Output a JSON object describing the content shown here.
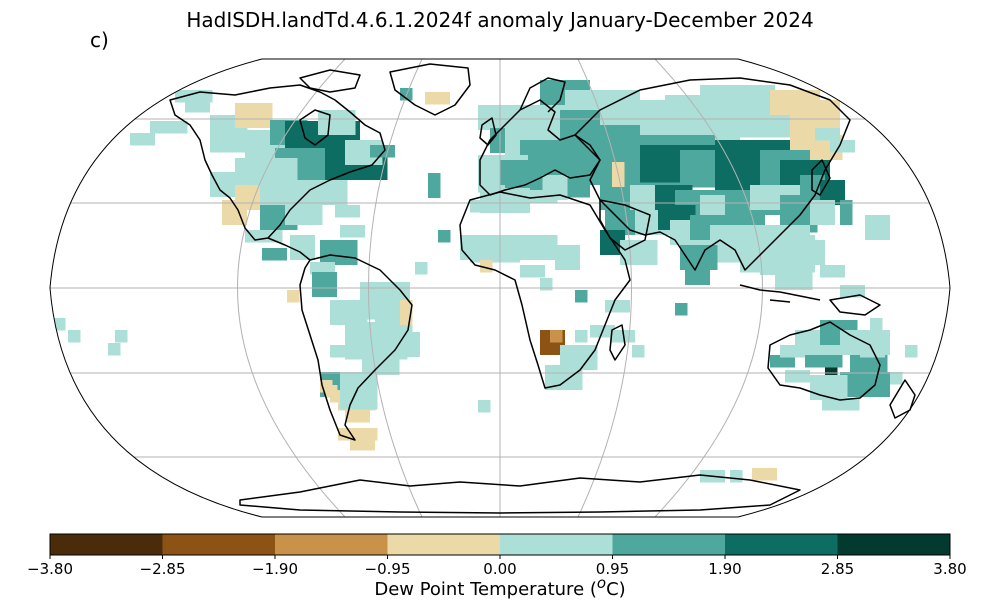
{
  "title": "HadISDH.landTd.4.6.1.2024f anomaly January-December 2024",
  "panel_label": "c)",
  "colorbar": {
    "label_prefix": "Dew Point Temperature (",
    "label_unit_super": "o",
    "label_suffix": "C)",
    "ticks": [
      "−3.80",
      "−2.85",
      "−1.90",
      "−0.95",
      "0.00",
      "0.95",
      "1.90",
      "2.85",
      "3.80"
    ],
    "colors": [
      "#4b2c0a",
      "#8d5314",
      "#c8924a",
      "#ecd9a8",
      "#acdfd7",
      "#4fa89d",
      "#0d6d62",
      "#033a30"
    ]
  },
  "map": {
    "projection": "Robinson",
    "graticule": true,
    "colors": {
      "grid": "#b3b3b3",
      "coast": "#000000",
      "outline": "#000000"
    }
  }
}
